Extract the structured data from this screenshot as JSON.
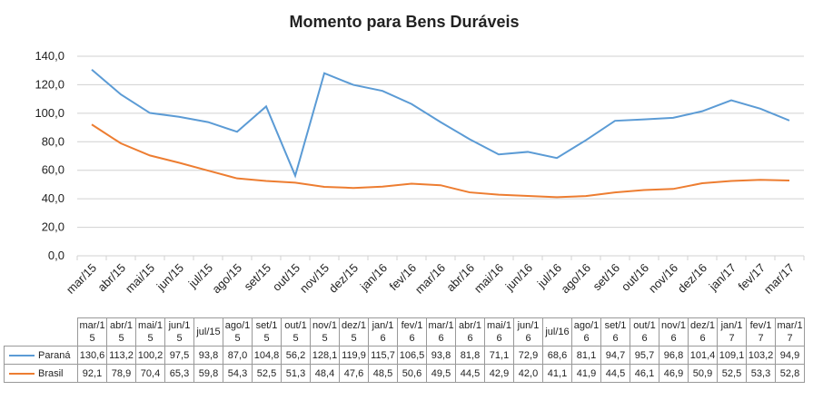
{
  "chart_data": {
    "type": "line",
    "title": "Momento para Bens Duráveis",
    "categories": [
      "mar/15",
      "abr/15",
      "mai/15",
      "jun/15",
      "jul/15",
      "ago/15",
      "set/15",
      "out/15",
      "nov/15",
      "dez/15",
      "jan/16",
      "fev/16",
      "mar/16",
      "abr/16",
      "mai/16",
      "jun/16",
      "jul/16",
      "ago/16",
      "set/16",
      "out/16",
      "nov/16",
      "dez/16",
      "jan/17",
      "fev/17",
      "mar/17"
    ],
    "series": [
      {
        "name": "Paraná",
        "color": "#5b9bd5",
        "values": [
          130.6,
          113.2,
          100.2,
          97.5,
          93.8,
          87.0,
          104.8,
          56.2,
          128.1,
          119.9,
          115.7,
          106.5,
          93.8,
          81.8,
          71.1,
          72.9,
          68.6,
          81.1,
          94.7,
          95.7,
          96.8,
          101.4,
          109.1,
          103.2,
          94.9
        ],
        "value_labels": [
          "130,6",
          "113,2",
          "100,2",
          "97,5",
          "93,8",
          "87,0",
          "104,8",
          "56,2",
          "128,1",
          "119,9",
          "115,7",
          "106,5",
          "93,8",
          "81,8",
          "71,1",
          "72,9",
          "68,6",
          "81,1",
          "94,7",
          "95,7",
          "96,8",
          "101,4",
          "109,1",
          "103,2",
          "94,9"
        ]
      },
      {
        "name": "Brasil",
        "color": "#ed7d31",
        "values": [
          92.1,
          78.9,
          70.4,
          65.3,
          59.8,
          54.3,
          52.5,
          51.3,
          48.4,
          47.6,
          48.5,
          50.6,
          49.5,
          44.5,
          42.9,
          42.0,
          41.1,
          41.9,
          44.5,
          46.1,
          46.9,
          50.9,
          52.5,
          53.3,
          52.8
        ],
        "value_labels": [
          "92,1",
          "78,9",
          "70,4",
          "65,3",
          "59,8",
          "54,3",
          "52,5",
          "51,3",
          "48,4",
          "47,6",
          "48,5",
          "50,6",
          "49,5",
          "44,5",
          "42,9",
          "42,0",
          "41,1",
          "41,9",
          "44,5",
          "46,1",
          "46,9",
          "50,9",
          "52,5",
          "53,3",
          "52,8"
        ]
      }
    ],
    "ylim": [
      0,
      140
    ],
    "yticks": [
      {
        "value": 0,
        "label": "0,0"
      },
      {
        "value": 20,
        "label": "20,0"
      },
      {
        "value": 40,
        "label": "40,0"
      },
      {
        "value": 60,
        "label": "60,0"
      },
      {
        "value": 80,
        "label": "80,0"
      },
      {
        "value": 100,
        "label": "100,0"
      },
      {
        "value": 120,
        "label": "120,0"
      },
      {
        "value": 140,
        "label": "140,0"
      }
    ],
    "grid": true
  }
}
